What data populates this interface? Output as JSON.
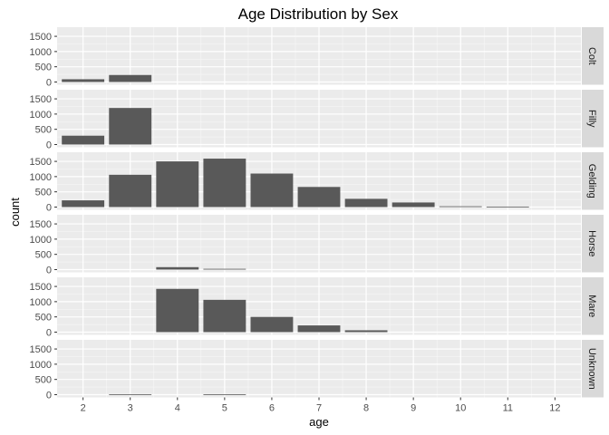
{
  "chart_data": {
    "type": "bar",
    "title": "Age Distribution by Sex",
    "xlabel": "age",
    "ylabel": "count",
    "x_ticks": [
      2,
      3,
      4,
      5,
      6,
      7,
      8,
      9,
      10,
      11,
      12
    ],
    "x_range": [
      1.45,
      12.55
    ],
    "y_ticks": [
      0,
      500,
      1000,
      1500
    ],
    "ylim": [
      -90,
      1800
    ],
    "bar_color": "#595959",
    "panel_background": "#ebebeb",
    "strip_background": "#d9d9d9",
    "grid": true,
    "facets": [
      {
        "label": "Colt",
        "bars": [
          {
            "x": 2,
            "value": 90
          },
          {
            "x": 3,
            "value": 230
          }
        ]
      },
      {
        "label": "Filly",
        "bars": [
          {
            "x": 2,
            "value": 290
          },
          {
            "x": 3,
            "value": 1200
          }
        ]
      },
      {
        "label": "Gelding",
        "bars": [
          {
            "x": 2,
            "value": 220
          },
          {
            "x": 3,
            "value": 1060
          },
          {
            "x": 4,
            "value": 1500
          },
          {
            "x": 5,
            "value": 1590
          },
          {
            "x": 6,
            "value": 1100
          },
          {
            "x": 7,
            "value": 660
          },
          {
            "x": 8,
            "value": 270
          },
          {
            "x": 9,
            "value": 150
          },
          {
            "x": 10,
            "value": 25
          },
          {
            "x": 11,
            "value": 15
          }
        ]
      },
      {
        "label": "Horse",
        "bars": [
          {
            "x": 4,
            "value": 80
          },
          {
            "x": 5,
            "value": 25
          }
        ]
      },
      {
        "label": "Mare",
        "bars": [
          {
            "x": 4,
            "value": 1420
          },
          {
            "x": 5,
            "value": 1060
          },
          {
            "x": 6,
            "value": 500
          },
          {
            "x": 7,
            "value": 220
          },
          {
            "x": 8,
            "value": 60
          }
        ]
      },
      {
        "label": "Unknown",
        "bars": [
          {
            "x": 3,
            "value": 10
          },
          {
            "x": 5,
            "value": 12
          }
        ]
      }
    ]
  }
}
